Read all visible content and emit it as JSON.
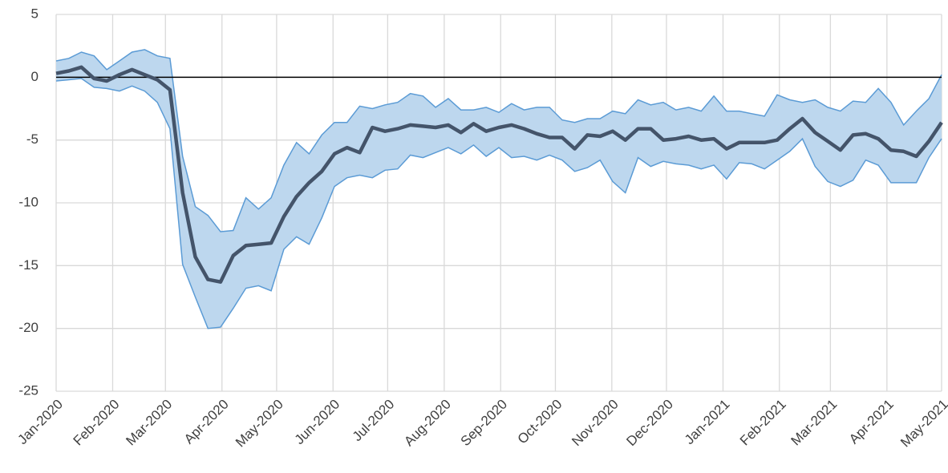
{
  "chart_data": {
    "type": "band-line",
    "x": [
      0,
      1,
      2,
      3,
      4,
      5,
      6,
      7,
      8,
      9,
      10,
      11,
      12,
      13,
      14,
      15,
      16,
      17,
      18,
      19,
      20,
      21,
      22,
      23,
      24,
      25,
      26,
      27,
      28,
      29,
      30,
      31,
      32,
      33,
      34,
      35,
      36,
      37,
      38,
      39,
      40,
      41,
      42,
      43,
      44,
      45,
      46,
      47,
      48,
      49,
      50,
      51,
      52,
      53,
      54,
      55,
      56,
      57,
      58,
      59,
      60,
      61,
      62,
      63,
      64,
      65,
      66,
      67,
      68,
      69,
      70
    ],
    "values": [
      0.3,
      0.5,
      0.8,
      -0.1,
      -0.3,
      0.2,
      0.6,
      0.2,
      -0.2,
      -1.0,
      -9.2,
      -14.3,
      -16.1,
      -16.3,
      -14.2,
      -13.4,
      -13.3,
      -13.2,
      -11.1,
      -9.5,
      -8.4,
      -7.5,
      -6.1,
      -5.6,
      -6.0,
      -4.0,
      -4.3,
      -4.1,
      -3.8,
      -3.9,
      -4.0,
      -3.8,
      -4.4,
      -3.7,
      -4.3,
      -4.0,
      -3.8,
      -4.1,
      -4.5,
      -4.8,
      -4.8,
      -5.7,
      -4.6,
      -4.7,
      -4.3,
      -5.0,
      -4.1,
      -4.1,
      -5.0,
      -4.9,
      -4.7,
      -5.0,
      -4.9,
      -5.7,
      -5.2,
      -5.2,
      -5.2,
      -5.0,
      -4.1,
      -3.3,
      -4.4,
      -5.1,
      -5.8,
      -4.6,
      -4.5,
      -4.9,
      -5.8,
      -5.9,
      -6.3,
      -5.1,
      -3.6
    ],
    "upper": [
      1.3,
      1.5,
      2.0,
      1.7,
      0.6,
      1.3,
      2.0,
      2.2,
      1.7,
      1.5,
      -6.3,
      -10.3,
      -11.0,
      -12.3,
      -12.2,
      -9.6,
      -10.5,
      -9.6,
      -7.0,
      -5.2,
      -6.1,
      -4.6,
      -3.6,
      -3.6,
      -2.3,
      -2.5,
      -2.2,
      -2.0,
      -1.3,
      -1.5,
      -2.4,
      -1.7,
      -2.6,
      -2.6,
      -2.4,
      -2.8,
      -2.1,
      -2.6,
      -2.4,
      -2.4,
      -3.4,
      -3.6,
      -3.3,
      -3.3,
      -2.7,
      -2.9,
      -1.8,
      -2.2,
      -2.0,
      -2.6,
      -2.4,
      -2.7,
      -1.5,
      -2.7,
      -2.7,
      -2.9,
      -3.1,
      -1.4,
      -1.8,
      -2.0,
      -1.8,
      -2.4,
      -2.7,
      -1.9,
      -2.0,
      -0.9,
      -2.0,
      -3.8,
      -2.7,
      -1.7,
      0.2
    ],
    "lower": [
      -0.3,
      -0.2,
      -0.1,
      -0.8,
      -0.9,
      -1.1,
      -0.7,
      -1.1,
      -2.0,
      -4.1,
      -14.9,
      -17.5,
      -20.0,
      -19.9,
      -18.4,
      -16.8,
      -16.6,
      -17.0,
      -13.7,
      -12.7,
      -13.3,
      -11.2,
      -8.7,
      -8.0,
      -7.8,
      -8.0,
      -7.4,
      -7.3,
      -6.2,
      -6.4,
      -6.0,
      -5.6,
      -6.1,
      -5.4,
      -6.3,
      -5.6,
      -6.4,
      -6.3,
      -6.6,
      -6.2,
      -6.6,
      -7.5,
      -7.2,
      -6.6,
      -8.3,
      -9.2,
      -6.4,
      -7.1,
      -6.7,
      -6.9,
      -7.0,
      -7.3,
      -7.0,
      -8.1,
      -6.8,
      -6.9,
      -7.3,
      -6.6,
      -5.9,
      -4.9,
      -7.1,
      -8.3,
      -8.7,
      -8.2,
      -6.6,
      -7.0,
      -8.4,
      -8.4,
      -8.4,
      -6.4,
      -4.9
    ],
    "line_color": "#44546a",
    "band_color": "#bdd7ee",
    "band_edge_color": "#5b9bd5",
    "xlim": [
      0,
      70
    ],
    "xticks": [
      {
        "value": 0,
        "label": "Jan-2020"
      },
      {
        "value": 4.47,
        "label": "Feb-2020"
      },
      {
        "value": 8.64,
        "label": "Mar-2020"
      },
      {
        "value": 13.11,
        "label": "Apr-2020"
      },
      {
        "value": 17.43,
        "label": "May-2020"
      },
      {
        "value": 21.89,
        "label": "Jun-2020"
      },
      {
        "value": 26.21,
        "label": "Jul-2020"
      },
      {
        "value": 30.68,
        "label": "Aug-2020"
      },
      {
        "value": 35.14,
        "label": "Sep-2020"
      },
      {
        "value": 39.47,
        "label": "Oct-2020"
      },
      {
        "value": 43.93,
        "label": "Nov-2020"
      },
      {
        "value": 48.25,
        "label": "Dec-2020"
      },
      {
        "value": 52.72,
        "label": "Jan-2021"
      },
      {
        "value": 57.18,
        "label": "Feb-2021"
      },
      {
        "value": 61.21,
        "label": "Mar-2021"
      },
      {
        "value": 65.68,
        "label": "Apr-2021"
      },
      {
        "value": 70,
        "label": "May-2021"
      }
    ],
    "ylim": [
      -25,
      5
    ],
    "yticks": [
      -25,
      -20,
      -15,
      -10,
      -5,
      0,
      5
    ],
    "grid": true,
    "zero_line": true
  }
}
